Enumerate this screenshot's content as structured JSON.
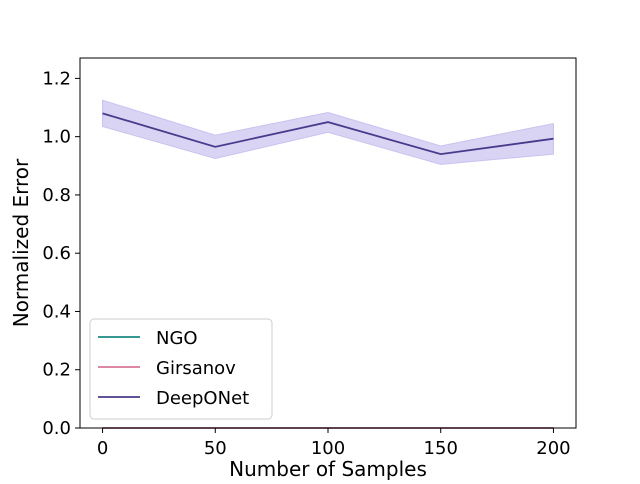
{
  "chart_data": {
    "type": "line",
    "title": "",
    "xlabel": "Number of Samples",
    "ylabel": "Normalized Error",
    "xlim": [
      -10,
      210
    ],
    "ylim": [
      0,
      1.27
    ],
    "xticks": [
      0,
      50,
      100,
      150,
      200
    ],
    "yticks": [
      0.0,
      0.2,
      0.4,
      0.6,
      0.8,
      1.0,
      1.2
    ],
    "xtick_labels": [
      "0",
      "50",
      "100",
      "150",
      "200"
    ],
    "ytick_labels": [
      "0.0",
      "0.2",
      "0.4",
      "0.6",
      "0.8",
      "1.0",
      "1.2"
    ],
    "grid": false,
    "legend_position": "lower-left",
    "x": [
      0,
      50,
      100,
      150,
      200
    ],
    "series": [
      {
        "name": "NGO",
        "color": "#1a8a80",
        "values": [
          0.0,
          0.0,
          0.0,
          0.0,
          0.0
        ],
        "lower": [
          0.0,
          0.0,
          0.0,
          0.0,
          0.0
        ],
        "upper": [
          0.0,
          0.0,
          0.0,
          0.0,
          0.0
        ]
      },
      {
        "name": "Girsanov",
        "color": "#d9779b",
        "values": [
          0.0,
          0.0,
          0.0,
          0.0,
          0.0
        ],
        "lower": [
          0.0,
          0.0,
          0.0,
          0.0,
          0.0
        ],
        "upper": [
          0.0,
          0.0,
          0.0,
          0.0,
          0.0
        ]
      },
      {
        "name": "DeepONet",
        "color": "#4b3a8c",
        "band_color": "#c9c2f0",
        "values": [
          1.08,
          0.965,
          1.05,
          0.94,
          0.993
        ],
        "lower": [
          1.035,
          0.925,
          1.015,
          0.905,
          0.94
        ],
        "upper": [
          1.125,
          1.005,
          1.083,
          0.968,
          1.045
        ]
      }
    ]
  }
}
